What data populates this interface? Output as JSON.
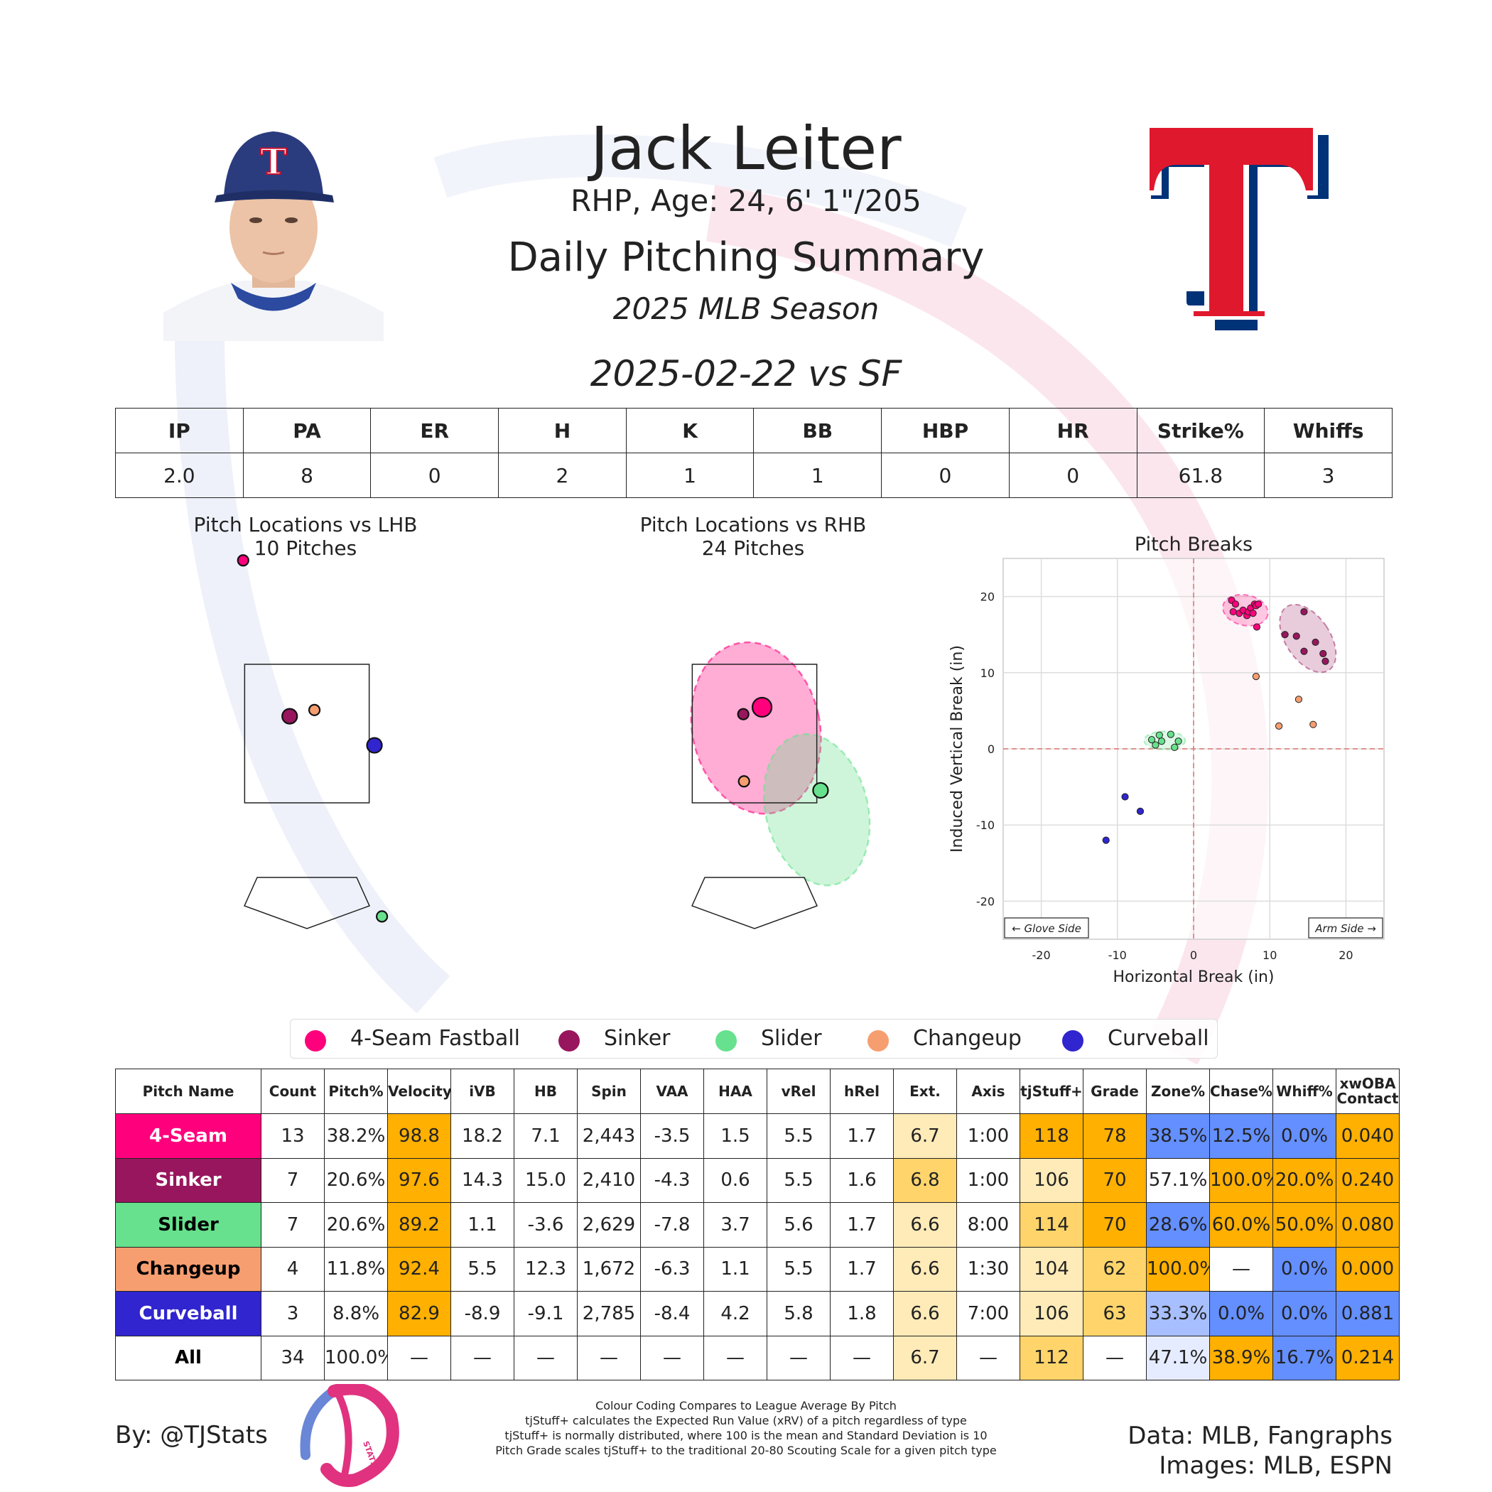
{
  "header": {
    "name": "Jack Leiter",
    "info": "RHP, Age: 24, 6' 1\"/205",
    "title": "Daily Pitching Summary",
    "season": "2025 MLB Season",
    "game": "2025-02-22 vs SF"
  },
  "colors": {
    "4-Seam Fastball": "#FF007D",
    "Sinker": "#98165D",
    "Slider": "#67E18D",
    "Changeup": "#F79E70",
    "Curveball": "#3025CE",
    "cell_high": "#FFB000",
    "cell_mid": "#FFD56B",
    "cell_light": "#FFEBB8",
    "cell_low": "#648FFF",
    "cell_low_mid": "#A8BFFF",
    "cell_low_light": "#E6ECFF",
    "team_red": "#E0182D",
    "team_blue": "#003278"
  },
  "game_stats": {
    "headers": [
      "IP",
      "PA",
      "ER",
      "H",
      "K",
      "BB",
      "HBP",
      "HR",
      "Strike%",
      "Whiffs"
    ],
    "values": [
      "2.0",
      "8",
      "0",
      "2",
      "1",
      "1",
      "0",
      "0",
      "61.8",
      "3"
    ]
  },
  "chart_data": [
    {
      "type": "scatter",
      "title": "Pitch Locations vs LHB",
      "subtitle": "10 Pitches",
      "units": "ft",
      "points": [
        {
          "pitch": "4-Seam Fastball",
          "x": -0.85,
          "y": 5.0,
          "size": "small"
        },
        {
          "pitch": "Sinker",
          "x": -0.23,
          "y": 2.75,
          "size": "medium"
        },
        {
          "pitch": "Changeup",
          "x": 0.1,
          "y": 2.84,
          "size": "small"
        },
        {
          "pitch": "Curveball",
          "x": 0.9,
          "y": 2.33,
          "size": "medium"
        },
        {
          "pitch": "Slider",
          "x": 1.0,
          "y": -0.14,
          "size": "small"
        }
      ],
      "strike_zone": {
        "x": [
          -0.83,
          0.83
        ],
        "y": [
          1.5,
          3.5
        ]
      }
    },
    {
      "type": "scatter",
      "title": "Pitch Locations vs RHB",
      "subtitle": "24 Pitches",
      "units": "ft",
      "points": [
        {
          "pitch": "4-Seam Fastball",
          "x": 0.1,
          "y": 2.88,
          "size": "large"
        },
        {
          "pitch": "Sinker",
          "x": -0.15,
          "y": 2.78,
          "size": "small"
        },
        {
          "pitch": "Changeup",
          "x": -0.14,
          "y": 1.81,
          "size": "small"
        },
        {
          "pitch": "Slider",
          "x": 0.88,
          "y": 1.68,
          "size": "medium"
        }
      ],
      "ellipses": [
        {
          "pitch": "4-Seam Fastball",
          "cx": 0.02,
          "cy": 2.58,
          "rx": 0.85,
          "ry": 1.25,
          "angle": -12
        },
        {
          "pitch": "Slider",
          "cx": 0.83,
          "cy": 1.4,
          "rx": 0.68,
          "ry": 1.11,
          "angle": -14
        }
      ],
      "strike_zone": {
        "x": [
          -0.83,
          0.83
        ],
        "y": [
          1.5,
          3.5
        ]
      }
    },
    {
      "type": "scatter",
      "title": "Pitch Breaks",
      "xlabel": "Horizontal Break (in)",
      "ylabel": "Induced Vertical Break (in)",
      "xlim": [
        -25,
        25
      ],
      "ylim": [
        -25,
        25
      ],
      "xticks": [
        -20,
        -10,
        0,
        10,
        20
      ],
      "yticks": [
        -20,
        -10,
        0,
        10,
        20
      ],
      "grid": true,
      "annotations": [
        "← Glove Side",
        "Arm Side →"
      ],
      "series": [
        {
          "name": "4-Seam Fastball",
          "points": [
            [
              5,
              19.5
            ],
            [
              5.2,
              18
            ],
            [
              5.5,
              19
            ],
            [
              6,
              17.8
            ],
            [
              6.5,
              18.2
            ],
            [
              7,
              17.5
            ],
            [
              7.2,
              18
            ],
            [
              7.5,
              18.5
            ],
            [
              7.8,
              17.8
            ],
            [
              8,
              19
            ],
            [
              8.2,
              18.8
            ],
            [
              8.3,
              16
            ],
            [
              8.5,
              19
            ]
          ]
        },
        {
          "name": "Sinker",
          "points": [
            [
              12,
              15
            ],
            [
              13.5,
              14.8
            ],
            [
              14.5,
              18
            ],
            [
              14.5,
              12.8
            ],
            [
              16,
              14
            ],
            [
              17,
              12.5
            ],
            [
              17.3,
              11.5
            ]
          ]
        },
        {
          "name": "Slider",
          "points": [
            [
              -5.5,
              1.2
            ],
            [
              -5,
              0.5
            ],
            [
              -4.5,
              1.8
            ],
            [
              -4.2,
              1
            ],
            [
              -3,
              1.9
            ],
            [
              -2.5,
              0.2
            ],
            [
              -2,
              1
            ]
          ]
        },
        {
          "name": "Changeup",
          "points": [
            [
              8.2,
              9.5
            ],
            [
              11.2,
              3
            ],
            [
              13.8,
              6.5
            ],
            [
              15.7,
              3.2
            ]
          ]
        },
        {
          "name": "Curveball",
          "points": [
            [
              -9,
              -6.3
            ],
            [
              -7,
              -8.2
            ],
            [
              -11.5,
              -12
            ]
          ]
        }
      ],
      "ellipses": [
        {
          "name": "4-Seam Fastball",
          "cx": 6.8,
          "cy": 18.2,
          "rx": 3,
          "ry": 2,
          "angle": 12
        },
        {
          "name": "Sinker",
          "cx": 15,
          "cy": 14.5,
          "rx": 2.9,
          "ry": 5,
          "angle": -34
        },
        {
          "name": "Slider",
          "cx": -3.8,
          "cy": 1.1,
          "rx": 2.7,
          "ry": 1.2,
          "angle": 0
        }
      ]
    }
  ],
  "legend": [
    "4-Seam Fastball",
    "Sinker",
    "Slider",
    "Changeup",
    "Curveball"
  ],
  "pitch_table": {
    "headers": [
      "Pitch Name",
      "Count",
      "Pitch%",
      "Velocity",
      "iVB",
      "HB",
      "Spin",
      "VAA",
      "HAA",
      "vRel",
      "hRel",
      "Ext.",
      "Axis",
      "tjStuff+",
      "Grade",
      "Zone%",
      "Chase%",
      "Whiff%",
      "xwOBA\nContact"
    ],
    "rows": [
      {
        "name": "4-Seam",
        "bg": "#FF007D",
        "fg": "#FFFFFF",
        "cells": [
          "13",
          "38.2%",
          "98.8",
          "18.2",
          "7.1",
          "2,443",
          "-3.5",
          "1.5",
          "5.5",
          "1.7",
          "6.7",
          "1:00",
          "118",
          "78",
          "38.5%",
          "12.5%",
          "0.0%",
          "0.040"
        ],
        "shade": [
          "",
          "",
          "high",
          "",
          "",
          "",
          "",
          "",
          "",
          "",
          "light",
          "",
          "high",
          "high",
          "low",
          "low",
          "low",
          "high"
        ]
      },
      {
        "name": "Sinker",
        "bg": "#98165D",
        "fg": "#FFFFFF",
        "cells": [
          "7",
          "20.6%",
          "97.6",
          "14.3",
          "15.0",
          "2,410",
          "-4.3",
          "0.6",
          "5.5",
          "1.6",
          "6.8",
          "1:00",
          "106",
          "70",
          "57.1%",
          "100.0%",
          "20.0%",
          "0.240"
        ],
        "shade": [
          "",
          "",
          "high",
          "",
          "",
          "",
          "",
          "",
          "",
          "",
          "mid",
          "",
          "light",
          "high",
          "",
          "high",
          "high",
          "high"
        ]
      },
      {
        "name": "Slider",
        "bg": "#67E18D",
        "fg": "#000000",
        "cells": [
          "7",
          "20.6%",
          "89.2",
          "1.1",
          "-3.6",
          "2,629",
          "-7.8",
          "3.7",
          "5.6",
          "1.7",
          "6.6",
          "8:00",
          "114",
          "70",
          "28.6%",
          "60.0%",
          "50.0%",
          "0.080"
        ],
        "shade": [
          "",
          "",
          "high",
          "",
          "",
          "",
          "",
          "",
          "",
          "",
          "light",
          "",
          "mid",
          "high",
          "low",
          "high",
          "high",
          "high"
        ]
      },
      {
        "name": "Changeup",
        "bg": "#F79E70",
        "fg": "#000000",
        "cells": [
          "4",
          "11.8%",
          "92.4",
          "5.5",
          "12.3",
          "1,672",
          "-6.3",
          "1.1",
          "5.5",
          "1.7",
          "6.6",
          "1:30",
          "104",
          "62",
          "100.0%",
          "—",
          "0.0%",
          "0.000"
        ],
        "shade": [
          "",
          "",
          "high",
          "",
          "",
          "",
          "",
          "",
          "",
          "",
          "light",
          "",
          "light",
          "mid",
          "high",
          "",
          "low",
          "high"
        ]
      },
      {
        "name": "Curveball",
        "bg": "#3025CE",
        "fg": "#FFFFFF",
        "cells": [
          "3",
          "8.8%",
          "82.9",
          "-8.9",
          "-9.1",
          "2,785",
          "-8.4",
          "4.2",
          "5.8",
          "1.8",
          "6.6",
          "7:00",
          "106",
          "63",
          "33.3%",
          "0.0%",
          "0.0%",
          "0.881"
        ],
        "shade": [
          "",
          "",
          "high",
          "",
          "",
          "",
          "",
          "",
          "",
          "",
          "light",
          "",
          "light",
          "mid",
          "lowmid",
          "low",
          "low",
          "low"
        ]
      },
      {
        "name": "All",
        "bg": "#FFFFFF",
        "fg": "#000000",
        "cells": [
          "34",
          "100.0%",
          "—",
          "—",
          "—",
          "—",
          "—",
          "—",
          "—",
          "—",
          "6.7",
          "—",
          "112",
          "—",
          "47.1%",
          "38.9%",
          "16.7%",
          "0.214"
        ],
        "shade": [
          "",
          "",
          "",
          "",
          "",
          "",
          "",
          "",
          "",
          "",
          "light",
          "",
          "mid",
          "",
          "lowlight",
          "high",
          "low",
          "high"
        ]
      }
    ]
  },
  "footer": {
    "by": "By: @TJStats",
    "notes": [
      "Colour Coding Compares to League Average By Pitch",
      "tjStuff+ calculates the Expected Run Value (xRV) of a pitch regardless of type",
      "tjStuff+ is normally distributed, where 100 is the mean and Standard Deviation is 10",
      "Pitch Grade scales tjStuff+ to the traditional 20-80 Scouting Scale for a given pitch type"
    ],
    "data_source": "Data: MLB, Fangraphs",
    "images_source": "Images: MLB, ESPN",
    "logo_text": "STATS",
    "cap_letter": "T"
  }
}
